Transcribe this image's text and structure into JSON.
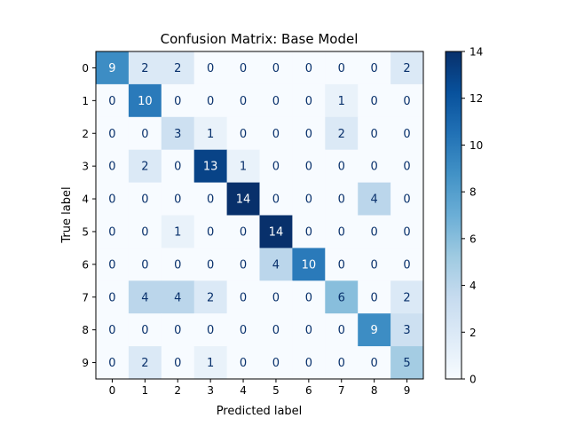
{
  "chart_data": {
    "type": "heatmap",
    "title": "Confusion Matrix: Base Model",
    "xlabel": "Predicted label",
    "ylabel": "True label",
    "x_categories": [
      "0",
      "1",
      "2",
      "3",
      "4",
      "5",
      "6",
      "7",
      "8",
      "9"
    ],
    "y_categories": [
      "0",
      "1",
      "2",
      "3",
      "4",
      "5",
      "6",
      "7",
      "8",
      "9"
    ],
    "matrix": [
      [
        9,
        2,
        2,
        0,
        0,
        0,
        0,
        0,
        0,
        2
      ],
      [
        0,
        10,
        0,
        0,
        0,
        0,
        0,
        1,
        0,
        0
      ],
      [
        0,
        0,
        3,
        1,
        0,
        0,
        0,
        2,
        0,
        0
      ],
      [
        0,
        2,
        0,
        13,
        1,
        0,
        0,
        0,
        0,
        0
      ],
      [
        0,
        0,
        0,
        0,
        14,
        0,
        0,
        0,
        4,
        0
      ],
      [
        0,
        0,
        1,
        0,
        0,
        14,
        0,
        0,
        0,
        0
      ],
      [
        0,
        0,
        0,
        0,
        0,
        4,
        10,
        0,
        0,
        0
      ],
      [
        0,
        4,
        4,
        2,
        0,
        0,
        0,
        6,
        0,
        2
      ],
      [
        0,
        0,
        0,
        0,
        0,
        0,
        0,
        0,
        9,
        3
      ],
      [
        0,
        2,
        0,
        1,
        0,
        0,
        0,
        0,
        0,
        5
      ]
    ],
    "colorbar": {
      "range": [
        0,
        14
      ],
      "ticks": [
        0,
        2,
        4,
        6,
        8,
        10,
        12,
        14
      ]
    },
    "colormap": "Blues",
    "grid": false
  }
}
